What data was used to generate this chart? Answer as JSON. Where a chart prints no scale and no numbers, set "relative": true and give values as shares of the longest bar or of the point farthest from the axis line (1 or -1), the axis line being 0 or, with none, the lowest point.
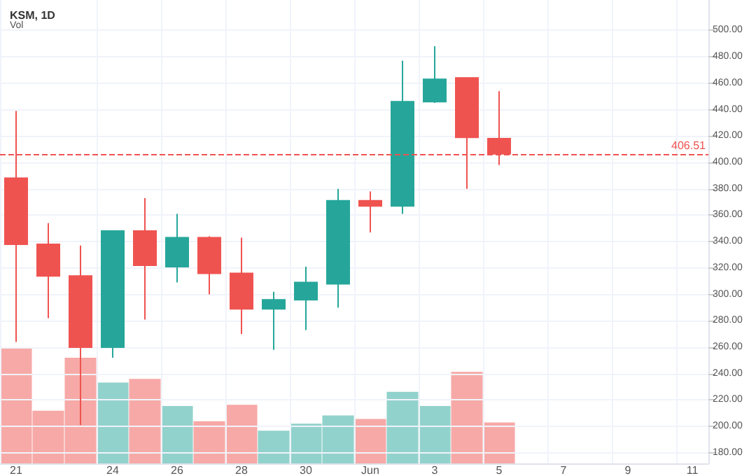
{
  "chart_data": [
    {
      "type": "candlestick",
      "title": "KSM, 1D",
      "categories": [
        "21",
        null,
        null,
        "24",
        null,
        "26",
        null,
        "28",
        null,
        "30",
        null,
        "Jun",
        null,
        "3",
        null,
        "5",
        null,
        "7",
        null,
        "9",
        null,
        "11"
      ],
      "ohlc": [
        [
          388,
          439,
          264,
          338
        ],
        [
          338,
          354,
          282,
          314
        ],
        [
          314,
          337,
          201,
          260
        ],
        [
          260,
          348,
          252,
          348
        ],
        [
          348,
          373,
          281,
          322
        ],
        [
          321,
          361,
          309,
          343
        ],
        [
          343,
          344,
          300,
          316
        ],
        [
          316,
          343,
          270,
          289
        ],
        [
          289,
          302,
          258,
          296
        ],
        [
          296,
          321,
          273,
          309
        ],
        [
          308,
          380,
          290,
          371
        ],
        [
          371,
          378,
          347,
          367
        ],
        [
          367,
          477,
          361,
          446
        ],
        [
          446,
          488,
          445,
          463
        ],
        [
          464,
          464,
          380,
          419
        ],
        [
          418,
          454,
          398,
          406.51
        ],
        null,
        null,
        null,
        null,
        null,
        null
      ],
      "colors": [
        "#ef5350",
        "#ef5350",
        "#ef5350",
        "#26a69a",
        "#ef5350",
        "#26a69a",
        "#ef5350",
        "#ef5350",
        "#26a69a",
        "#26a69a",
        "#26a69a",
        "#ef5350",
        "#26a69a",
        "#26a69a",
        "#ef5350",
        "#ef5350",
        null,
        null,
        null,
        null,
        null,
        null
      ],
      "ylim": [
        172,
        523
      ],
      "yticks": [
        {
          "value": 180,
          "label": "180.00"
        },
        {
          "value": 200,
          "label": "200.00"
        },
        {
          "value": 220,
          "label": "220.00"
        },
        {
          "value": 240,
          "label": "240.00"
        },
        {
          "value": 260,
          "label": "260.00"
        },
        {
          "value": 280,
          "label": "280.00"
        },
        {
          "value": 300,
          "label": "300.00"
        },
        {
          "value": 320,
          "label": "320.00"
        },
        {
          "value": 340,
          "label": "340.00"
        },
        {
          "value": 360,
          "label": "360.00"
        },
        {
          "value": 380,
          "label": "380.00"
        },
        {
          "value": 400,
          "label": "400.00"
        },
        {
          "value": 420,
          "label": "420.00"
        },
        {
          "value": 440,
          "label": "440.00"
        },
        {
          "value": 460,
          "label": "460.00"
        },
        {
          "value": 480,
          "label": "480.00"
        },
        {
          "value": 500,
          "label": "500.00"
        }
      ],
      "grid": true,
      "ref_lines": [
        {
          "axis": "y",
          "value": 406.51,
          "label": "406.51",
          "color": "#ef5350",
          "line_style": "dashed"
        }
      ]
    },
    {
      "type": "bar",
      "title": "Vol",
      "relative": true,
      "categories": [
        null,
        null,
        null,
        null,
        null,
        null,
        null,
        null,
        null,
        null,
        null,
        null,
        null,
        null,
        null,
        null,
        null,
        null,
        null,
        null,
        null,
        null
      ],
      "values": [
        1,
        0.46,
        0.91,
        0.7,
        0.73,
        0.5,
        0.37,
        0.51,
        0.29,
        0.35,
        0.42,
        0.39,
        0.62,
        0.5,
        0.79,
        0.36,
        null,
        null,
        null,
        null,
        null,
        null
      ],
      "colors": [
        "#f7a9a7",
        "#f7a9a7",
        "#f7a9a7",
        "#92d2cc",
        "#f7a9a7",
        "#92d2cc",
        "#f7a9a7",
        "#f7a9a7",
        "#92d2cc",
        "#92d2cc",
        "#92d2cc",
        "#f7a9a7",
        "#92d2cc",
        "#92d2cc",
        "#f7a9a7",
        "#f7a9a7",
        null,
        null,
        null,
        null,
        null,
        null
      ]
    }
  ]
}
